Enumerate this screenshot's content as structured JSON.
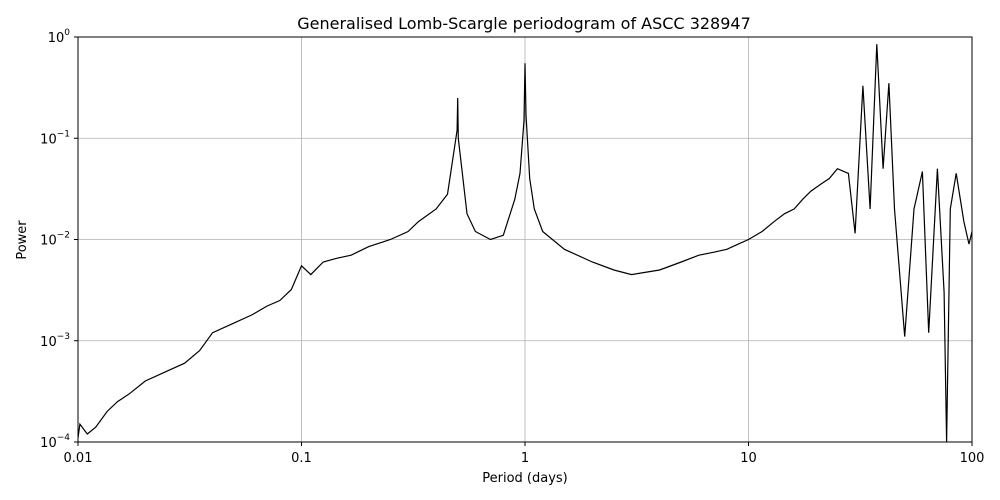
{
  "chart_data": {
    "type": "line",
    "title": "Generalised Lomb-Scargle periodogram of ASCC 328947",
    "xlabel": "Period (days)",
    "ylabel": "Power",
    "xscale": "log",
    "yscale": "log",
    "xlim": [
      0.01,
      100
    ],
    "ylim": [
      0.0001,
      1
    ],
    "grid": true,
    "line_color": "#000000",
    "grid_color": "#b0b0b0",
    "x_ticks": [
      {
        "value": 0.01,
        "label": "0.01"
      },
      {
        "value": 0.1,
        "label": "0.1"
      },
      {
        "value": 1,
        "label": "1"
      },
      {
        "value": 10,
        "label": "10"
      },
      {
        "value": 100,
        "label": "100"
      }
    ],
    "y_ticks": [
      {
        "value": 0.0001,
        "base": "10",
        "exp": "−4"
      },
      {
        "value": 0.001,
        "base": "10",
        "exp": "−3"
      },
      {
        "value": 0.01,
        "base": "10",
        "exp": "−2"
      },
      {
        "value": 0.1,
        "base": "10",
        "exp": "−1"
      },
      {
        "value": 1,
        "base": "10",
        "exp": "0"
      }
    ],
    "series": [
      {
        "period": [
          0.01,
          0.0102,
          0.011,
          0.012,
          0.0135,
          0.015,
          0.017,
          0.02,
          0.025,
          0.03,
          0.035,
          0.04,
          0.05,
          0.06,
          0.07,
          0.08,
          0.09,
          0.1,
          0.11,
          0.125,
          0.1428,
          0.1667,
          0.2,
          0.25,
          0.3,
          0.333,
          0.4,
          0.45,
          0.497,
          0.5,
          0.503,
          0.55,
          0.6,
          0.7,
          0.8,
          0.9,
          0.95,
          0.99,
          1.0,
          1.01,
          1.05,
          1.1,
          1.2,
          1.5,
          2.0,
          2.5,
          3.0,
          4.0,
          5.0,
          6.0,
          7.0,
          8.0,
          9.0,
          10.0,
          11.5,
          13.0,
          14.5,
          16.0,
          17.5,
          19.0,
          21.0,
          23.0,
          25.0,
          28.0,
          30.0,
          32.5,
          35.0,
          37.5,
          40.0,
          42.5,
          45.0,
          50.0,
          55.0,
          60.0,
          64.0,
          70.0,
          75.0,
          77.0,
          80.0,
          85.0,
          92.0,
          97.0,
          100.0
        ],
        "power": [
          0.00011,
          0.00015,
          0.00012,
          0.00014,
          0.0002,
          0.00025,
          0.0003,
          0.0004,
          0.0005,
          0.0006,
          0.0008,
          0.0012,
          0.0015,
          0.0018,
          0.0022,
          0.0025,
          0.0032,
          0.0055,
          0.0045,
          0.006,
          0.0065,
          0.007,
          0.0085,
          0.01,
          0.012,
          0.015,
          0.02,
          0.028,
          0.12,
          0.25,
          0.1,
          0.018,
          0.012,
          0.01,
          0.011,
          0.025,
          0.045,
          0.15,
          0.55,
          0.17,
          0.04,
          0.02,
          0.012,
          0.008,
          0.006,
          0.005,
          0.0045,
          0.005,
          0.006,
          0.007,
          0.0075,
          0.008,
          0.009,
          0.01,
          0.012,
          0.015,
          0.018,
          0.02,
          0.025,
          0.03,
          0.035,
          0.04,
          0.05,
          0.045,
          0.0115,
          0.33,
          0.02,
          0.85,
          0.05,
          0.35,
          0.02,
          0.0011,
          0.02,
          0.047,
          0.0012,
          0.05,
          0.003,
          0.0001,
          0.02,
          0.045,
          0.015,
          0.009,
          0.012
        ]
      }
    ]
  }
}
